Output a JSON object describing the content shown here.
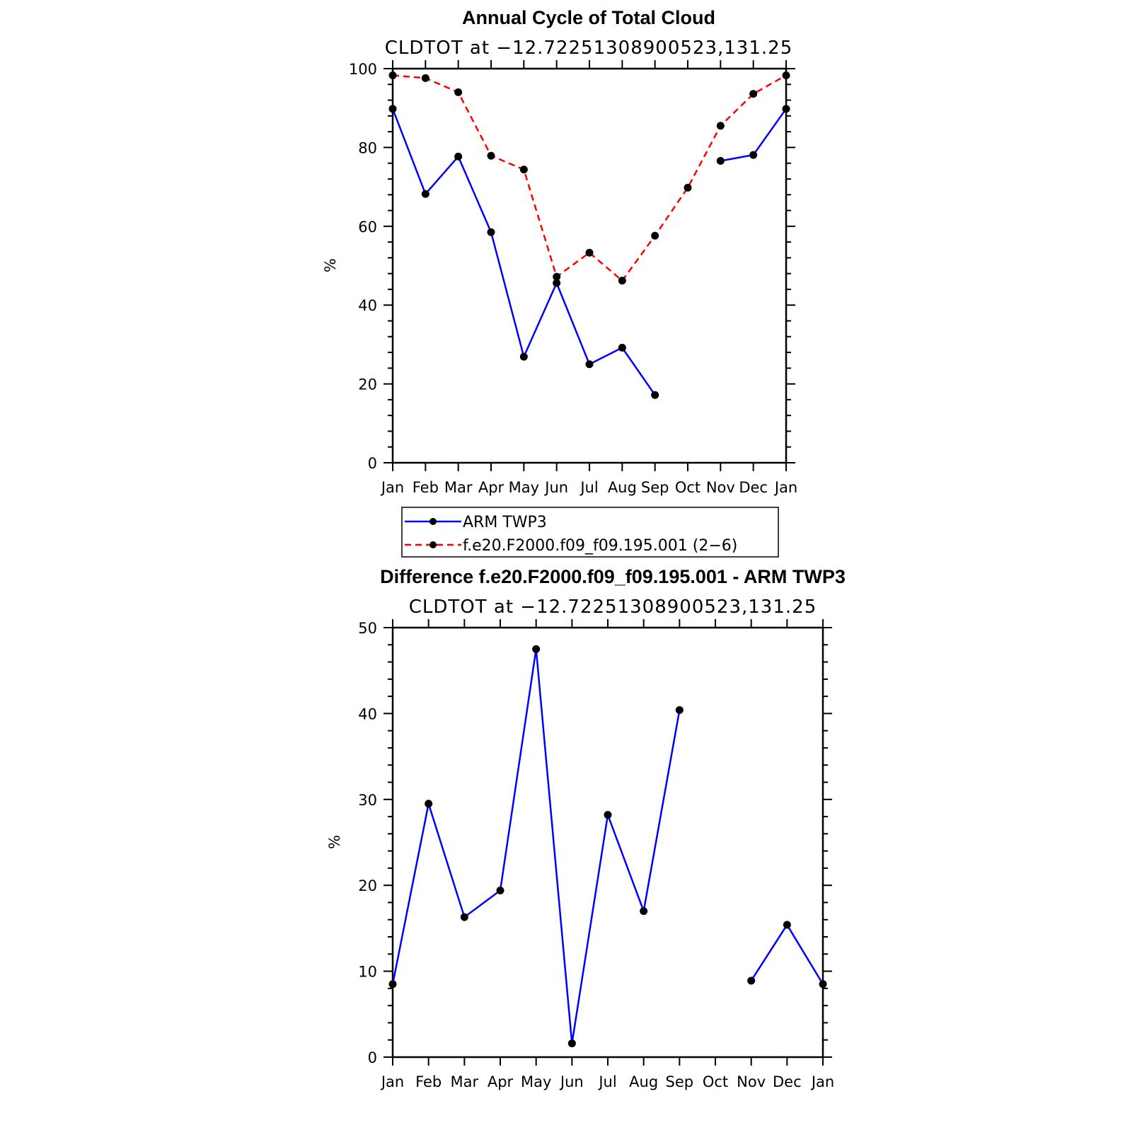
{
  "chart_data": [
    {
      "type": "line",
      "title": "Annual Cycle of Total Cloud",
      "subtitle": "CLDTOT at −12.72251308900523,131.25",
      "ylabel": "%",
      "xlabel": "",
      "ylim": [
        0,
        100
      ],
      "yticks": [
        0,
        20,
        40,
        60,
        80,
        100
      ],
      "categories": [
        "Jan",
        "Feb",
        "Mar",
        "Apr",
        "May",
        "Jun",
        "Jul",
        "Aug",
        "Sep",
        "Oct",
        "Nov",
        "Dec",
        "Jan"
      ],
      "series": [
        {
          "name": "ARM TWP3",
          "color": "#0000ff",
          "dash": false,
          "values": [
            89.8,
            68.2,
            77.7,
            58.5,
            26.9,
            45.6,
            25.0,
            29.2,
            17.2,
            null,
            76.6,
            78.1,
            89.8
          ]
        },
        {
          "name": "f.e20.F2000.f09_f09.195.001 (2−6)",
          "color": "#ff0000",
          "dash": true,
          "values": [
            98.3,
            97.6,
            94.0,
            77.9,
            74.4,
            47.2,
            53.3,
            46.2,
            57.6,
            69.8,
            85.5,
            93.6,
            98.3
          ]
        }
      ],
      "legend": [
        "ARM TWP3",
        "f.e20.F2000.f09_f09.195.001 (2−6)"
      ]
    },
    {
      "type": "line",
      "title": "Difference f.e20.F2000.f09_f09.195.001 - ARM TWP3",
      "subtitle": "CLDTOT at −12.72251308900523,131.25",
      "ylabel": "%",
      "xlabel": "",
      "ylim": [
        0,
        50
      ],
      "yticks": [
        0,
        10,
        20,
        30,
        40,
        50
      ],
      "categories": [
        "Jan",
        "Feb",
        "Mar",
        "Apr",
        "May",
        "Jun",
        "Jul",
        "Aug",
        "Sep",
        "Oct",
        "Nov",
        "Dec",
        "Jan"
      ],
      "series": [
        {
          "name": "Difference",
          "color": "#0000ff",
          "dash": false,
          "values": [
            8.5,
            29.5,
            16.3,
            19.4,
            47.5,
            1.6,
            28.2,
            17.0,
            40.4,
            null,
            8.9,
            15.4,
            8.5
          ]
        }
      ]
    }
  ]
}
